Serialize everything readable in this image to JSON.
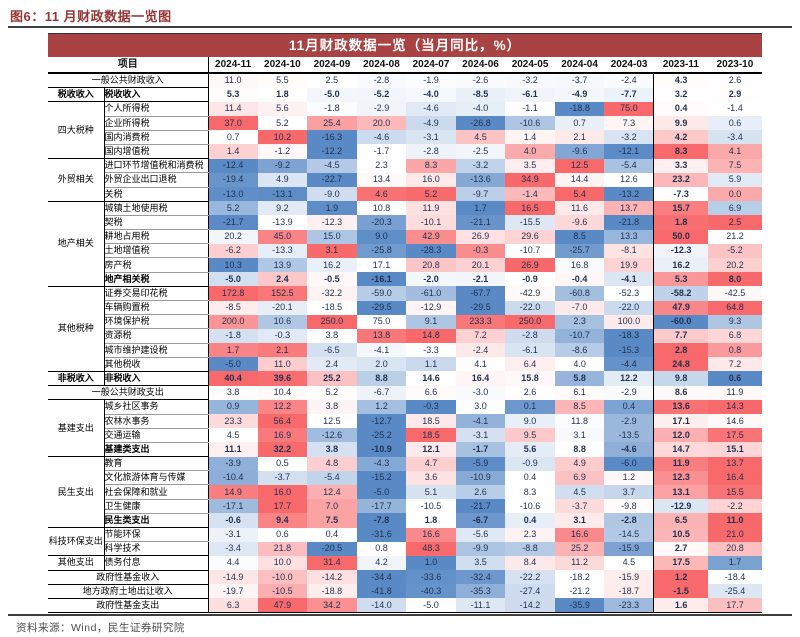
{
  "figure_label": "图6：11 月财政数据一览图",
  "source": "资料来源：Wind，民生证券研究院",
  "chart_data": {
    "type": "heatmap",
    "title": "11月财政数据一览（当月同比，%）",
    "unit": "当月同比，%",
    "legend_position": "none",
    "project_header": "项目",
    "columns": [
      "2024-11",
      "2024-10",
      "2024-09",
      "2024-08",
      "2024-07",
      "2024-06",
      "2024-05",
      "2024-04",
      "2024-03",
      "2023-11",
      "2023-10"
    ],
    "bold_column": "2023-11",
    "scale": {
      "mode": "per-row min/median/max",
      "global_min": -67.7,
      "global_max": 250.0
    },
    "rows": [
      {
        "span": true,
        "label": "一般公共财政收入",
        "muted": true,
        "gend": true,
        "values": [
          11.0,
          5.5,
          2.5,
          -2.8,
          -1.9,
          -2.6,
          -3.2,
          -3.7,
          -2.4,
          4.3,
          2.6
        ]
      },
      {
        "group": "税收收入",
        "group_rows": 1,
        "group_bold": true,
        "label": "税收收入",
        "bold": true,
        "muted": true,
        "gend": true,
        "values": [
          5.3,
          1.8,
          -5.0,
          -5.2,
          -4.0,
          -8.5,
          -6.1,
          -4.9,
          -7.7,
          3.2,
          2.9
        ]
      },
      {
        "group": "四大税种",
        "group_rows": 4,
        "label": "个人所得税",
        "values": [
          11.4,
          5.6,
          -1.8,
          -2.9,
          -4.6,
          -4.0,
          -1.1,
          -18.8,
          75.0,
          0.4,
          -1.4
        ]
      },
      {
        "label": "企业所得税",
        "values": [
          37.0,
          5.2,
          25.4,
          20.0,
          -4.9,
          -26.8,
          -10.6,
          0.7,
          7.3,
          9.9,
          0.6
        ]
      },
      {
        "label": "国内消费税",
        "values": [
          0.7,
          10.2,
          -16.3,
          -4.6,
          -3.1,
          4.5,
          1.4,
          2.1,
          -3.2,
          4.2,
          -3.4
        ]
      },
      {
        "label": "国内增值税",
        "gend": true,
        "values": [
          1.4,
          -1.2,
          -12.2,
          -1.7,
          -2.8,
          -2.5,
          4.0,
          -9.6,
          -12.1,
          8.3,
          4.1
        ]
      },
      {
        "group": "外贸相关",
        "group_rows": 3,
        "label": "进口环节增值税和消费税",
        "values": [
          -12.4,
          -9.2,
          -4.5,
          2.3,
          8.3,
          -3.2,
          3.5,
          12.5,
          -5.4,
          3.3,
          7.5
        ]
      },
      {
        "label": "外贸企业出口退税",
        "values": [
          -19.4,
          4.9,
          -22.7,
          13.4,
          16.0,
          -13.6,
          34.9,
          14.4,
          12.6,
          23.2,
          5.9
        ]
      },
      {
        "label": "关税",
        "gend": true,
        "values": [
          -13.0,
          -13.1,
          -9.0,
          4.6,
          5.2,
          -9.7,
          -1.4,
          5.4,
          -13.2,
          -7.3,
          0.0
        ]
      },
      {
        "group": "地产相关",
        "group_rows": 6,
        "label": "城镇土地使用税",
        "values": [
          5.2,
          9.2,
          1.9,
          10.8,
          11.9,
          1.7,
          16.5,
          11.6,
          13.7,
          15.7,
          6.9
        ]
      },
      {
        "label": "契税",
        "values": [
          -21.7,
          -13.9,
          -12.3,
          -20.3,
          -10.1,
          -21.1,
          -15.5,
          -9.6,
          -21.8,
          1.8,
          2.5
        ]
      },
      {
        "label": "耕地占用税",
        "values": [
          20.2,
          45.0,
          15.0,
          9.0,
          42.9,
          26.9,
          29.6,
          8.5,
          13.3,
          50.0,
          21.2
        ]
      },
      {
        "label": "土地增值税",
        "values": [
          -6.2,
          -13.3,
          3.1,
          -25.8,
          -28.3,
          -0.3,
          -10.7,
          -25.7,
          -8.1,
          -12.3,
          -5.2
        ]
      },
      {
        "label": "房产税",
        "values": [
          10.3,
          13.9,
          16.2,
          17.1,
          20.8,
          20.1,
          26.9,
          16.8,
          19.9,
          16.2,
          20.2
        ]
      },
      {
        "label": "地产相关税",
        "bold": true,
        "gend": true,
        "values": [
          -5.0,
          2.4,
          -0.5,
          -16.1,
          -2.0,
          -2.1,
          -0.9,
          -0.4,
          -4.1,
          5.3,
          8.0
        ]
      },
      {
        "group": "其他税种",
        "group_rows": 6,
        "label": "证券交易印花税",
        "values": [
          172.8,
          152.5,
          -32.2,
          -59.0,
          -61.0,
          -67.7,
          -42.9,
          -60.8,
          -52.3,
          -58.2,
          -42.5
        ]
      },
      {
        "label": "车辆购置税",
        "values": [
          -8.5,
          -20.1,
          -18.5,
          -29.5,
          -12.9,
          -29.5,
          -22.0,
          -7.0,
          -22.0,
          47.9,
          64.8
        ]
      },
      {
        "label": "环境保护税",
        "values": [
          200.0,
          10.6,
          250.0,
          75.0,
          9.1,
          233.3,
          250.0,
          2.3,
          100.0,
          -60.0,
          9.3
        ]
      },
      {
        "label": "资源税",
        "values": [
          -1.8,
          -0.3,
          3.8,
          13.8,
          14.8,
          7.2,
          -2.8,
          -10.7,
          -18.3,
          7.7,
          6.8
        ]
      },
      {
        "label": "城市维护建设税",
        "values": [
          1.7,
          2.1,
          -6.5,
          -4.1,
          -3.3,
          -2.4,
          -6.1,
          -8.6,
          -15.3,
          2.8,
          0.8
        ]
      },
      {
        "label": "其他税收",
        "gend": true,
        "values": [
          -5.0,
          11.0,
          2.4,
          2.0,
          1.1,
          4.1,
          6.4,
          4.0,
          -4.4,
          24.8,
          7.2
        ]
      },
      {
        "group": "非税收入",
        "group_rows": 1,
        "group_bold": true,
        "label": "非税收入",
        "bold": true,
        "gend": true,
        "values": [
          40.4,
          39.6,
          25.2,
          8.8,
          14.6,
          16.4,
          15.8,
          5.8,
          12.2,
          9.8,
          0.6
        ]
      },
      {
        "span": true,
        "label": "一般公共财政支出",
        "muted": true,
        "gend": true,
        "values": [
          3.8,
          10.4,
          5.2,
          -6.7,
          6.6,
          -3.0,
          2.6,
          6.1,
          -2.9,
          8.6,
          11.9
        ]
      },
      {
        "group": "基建支出",
        "group_rows": 4,
        "label": "城乡社区事务",
        "values": [
          0.9,
          12.2,
          3.8,
          1.2,
          -0.3,
          3.0,
          0.1,
          8.5,
          0.4,
          13.6,
          14.3
        ]
      },
      {
        "label": "农林水事务",
        "values": [
          23.3,
          56.4,
          12.5,
          -12.7,
          18.5,
          -4.1,
          9.0,
          11.8,
          -2.9,
          17.1,
          14.6
        ]
      },
      {
        "label": "交通运输",
        "values": [
          4.5,
          16.9,
          -12.6,
          -25.2,
          18.5,
          -3.1,
          9.5,
          3.1,
          -13.5,
          12.0,
          17.5
        ]
      },
      {
        "label": "基建类支出",
        "bold": true,
        "gend": true,
        "values": [
          11.1,
          32.2,
          3.8,
          -10.9,
          12.1,
          -1.7,
          5.6,
          8.8,
          -4.6,
          14.7,
          15.1
        ]
      },
      {
        "group": "民生支出",
        "group_rows": 5,
        "label": "教育",
        "values": [
          -3.9,
          0.5,
          4.8,
          -4.3,
          4.7,
          -5.9,
          -0.9,
          4.9,
          -6.0,
          11.9,
          13.7
        ]
      },
      {
        "label": "文化旅游体育与传媒",
        "values": [
          -10.4,
          -3.7,
          -5.4,
          -15.2,
          3.6,
          -10.9,
          0.4,
          6.9,
          1.2,
          12.3,
          16.4
        ]
      },
      {
        "label": "社会保障和就业",
        "values": [
          14.9,
          16.0,
          12.4,
          -5.0,
          5.1,
          2.6,
          8.3,
          4.5,
          3.7,
          13.1,
          15.5
        ]
      },
      {
        "label": "卫生健康",
        "values": [
          -17.1,
          17.7,
          7.0,
          -17.7,
          -10.5,
          -21.7,
          -10.6,
          -3.7,
          -9.8,
          -12.9,
          -2.2
        ]
      },
      {
        "label": "民生类支出",
        "bold": true,
        "gend": true,
        "values": [
          -0.6,
          9.4,
          7.5,
          -7.8,
          1.8,
          -6.7,
          0.4,
          3.1,
          -2.8,
          6.5,
          11.0
        ]
      },
      {
        "group": "科技环保支出",
        "group_rows": 2,
        "label": "节能环保",
        "values": [
          -3.1,
          0.6,
          0.4,
          -31.6,
          16.6,
          -5.6,
          2.3,
          16.6,
          -14.5,
          10.5,
          21.0
        ]
      },
      {
        "label": "科学技术",
        "gend": true,
        "values": [
          -3.4,
          21.8,
          -20.5,
          0.8,
          48.3,
          -9.9,
          -8.8,
          25.2,
          -15.9,
          2.7,
          20.8
        ]
      },
      {
        "group": "其他支出",
        "group_rows": 1,
        "label": "债务付息",
        "gend": true,
        "values": [
          4.4,
          10.0,
          31.4,
          4.2,
          1.0,
          3.5,
          8.4,
          11.2,
          4.5,
          17.5,
          1.7
        ]
      },
      {
        "span": true,
        "label": "政府性基金收入",
        "gend": true,
        "values": [
          -14.9,
          -10.0,
          -14.2,
          -34.4,
          -33.6,
          -32.4,
          -22.2,
          -18.2,
          -15.9,
          1.2,
          -18.4
        ]
      },
      {
        "span": true,
        "label": "地方政府土地出让收入",
        "gend": true,
        "values": [
          -19.7,
          -10.5,
          -18.8,
          -41.8,
          -40.3,
          -35.3,
          -27.4,
          -21.2,
          -18.7,
          -1.5,
          -25.4
        ]
      },
      {
        "span": true,
        "label": "政府性基金支出",
        "gend": true,
        "values": [
          6.3,
          47.9,
          34.2,
          -14.0,
          -5.0,
          -11.1,
          -14.2,
          -35.9,
          -23.3,
          1.6,
          17.7
        ]
      }
    ]
  },
  "colors": {
    "heat_red": "#F8696B",
    "heat_blue": "#5A8AC6",
    "heat_mid": "#FFFFFF",
    "title_bar_bg": "#A94343",
    "title_bar_fg": "#FFFFFF",
    "figure_label": "#943634",
    "value_text": "#1F3050"
  }
}
